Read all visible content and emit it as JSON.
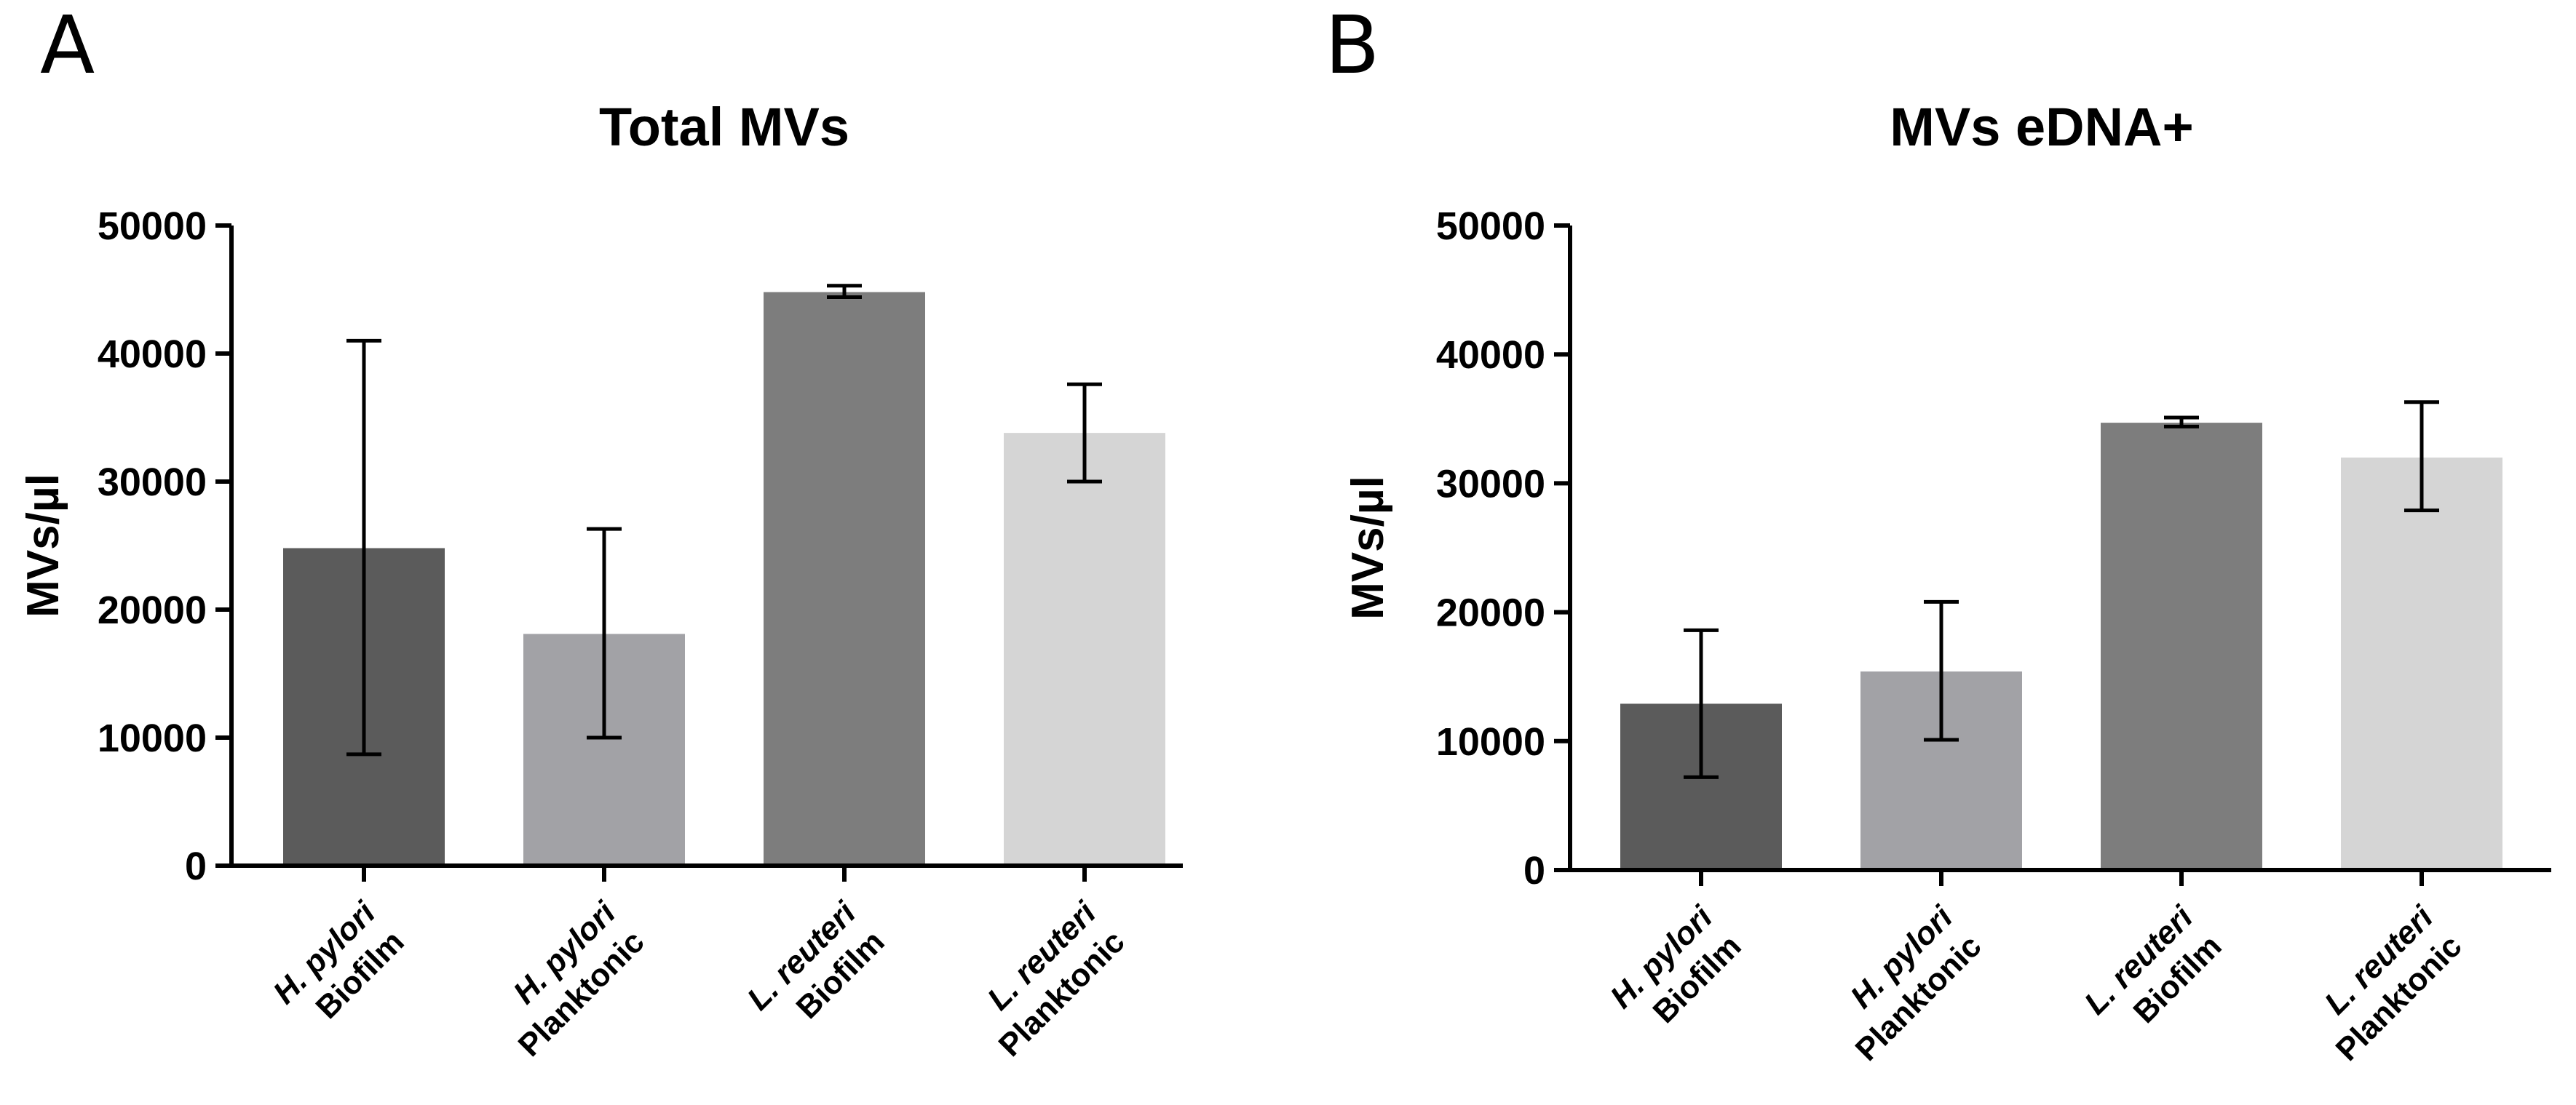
{
  "chart_data": [
    {
      "type": "bar",
      "panel_letter": "A",
      "title": "Total MVs",
      "ylabel": "MVs/µl",
      "xlabel": "",
      "ylim": [
        0,
        50000
      ],
      "yticks": [
        "0",
        "10000",
        "20000",
        "30000",
        "40000",
        "50000"
      ],
      "categories": [
        {
          "line1": "H. pylori",
          "line2": "Biofilm"
        },
        {
          "line1": "H. pylori",
          "line2": "Planktonic"
        },
        {
          "line1": "L. reuteri",
          "line2": "Biofilm"
        },
        {
          "line1": "L. reuteri",
          "line2": "Planktonic"
        }
      ],
      "values": [
        24800,
        18100,
        44800,
        33800
      ],
      "error_low": [
        8700,
        10000,
        44400,
        30000
      ],
      "error_high": [
        41000,
        26300,
        45300,
        37600
      ],
      "colors": [
        "#5b5b5b",
        "#a2a2a6",
        "#7d7d7d",
        "#d5d5d5"
      ]
    },
    {
      "type": "bar",
      "panel_letter": "B",
      "title": "MVs eDNA+",
      "ylabel": "MVs/µl",
      "xlabel": "",
      "ylim": [
        0,
        50000
      ],
      "yticks": [
        "0",
        "10000",
        "20000",
        "30000",
        "40000",
        "50000"
      ],
      "categories": [
        {
          "line1": "H. pylori",
          "line2": "Biofilm"
        },
        {
          "line1": "H. pylori",
          "line2": "Planktonic"
        },
        {
          "line1": "L. reuteri",
          "line2": "Biofilm"
        },
        {
          "line1": "L. reuteri",
          "line2": "Planktonic"
        }
      ],
      "values": [
        12900,
        15400,
        34700,
        32000
      ],
      "error_low": [
        7200,
        10100,
        34400,
        27900
      ],
      "error_high": [
        18600,
        20800,
        35100,
        36300
      ],
      "colors": [
        "#5b5b5b",
        "#a2a2a6",
        "#7d7d7d",
        "#d5d5d5"
      ]
    }
  ]
}
